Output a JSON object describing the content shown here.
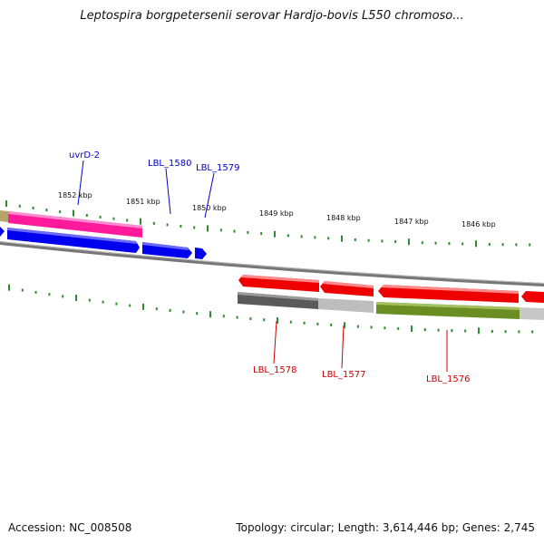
{
  "title": "Leptospira borgpetersenii serovar Hardjo-bovis L550 chromoso...",
  "footer": {
    "accession": "Accession: NC_008508",
    "summary": "Topology: circular; Length: 3,614,446 bp; Genes: 2,745"
  },
  "scale": {
    "tick_labels": [
      "1852 kbp",
      "1851 kbp",
      "1850 kbp",
      "1849 kbp",
      "1848 kbp",
      "1847 kbp",
      "1846 kbp"
    ],
    "tick_color": "#2e8b2e"
  },
  "genes_forward": [
    {
      "label": "uvrD-2",
      "color": "#0000cc"
    },
    {
      "label": "LBL_1580",
      "color": "#0000cc"
    },
    {
      "label": "LBL_1579",
      "color": "#0000cc"
    }
  ],
  "genes_reverse": [
    {
      "label": "LBL_1578",
      "color": "#cc0000"
    },
    {
      "label": "LBL_1577",
      "color": "#cc0000"
    },
    {
      "label": "LBL_1576",
      "color": "#cc0000"
    }
  ],
  "colors": {
    "forward_cds": "#0000ee",
    "reverse_cds": "#ee0000",
    "magenta_feature": "#ff1493",
    "olive_feature": "#6b8e23",
    "grey_feature": "#555555",
    "light_grey_feature": "#bbbbbb",
    "backbone": "#888888"
  }
}
